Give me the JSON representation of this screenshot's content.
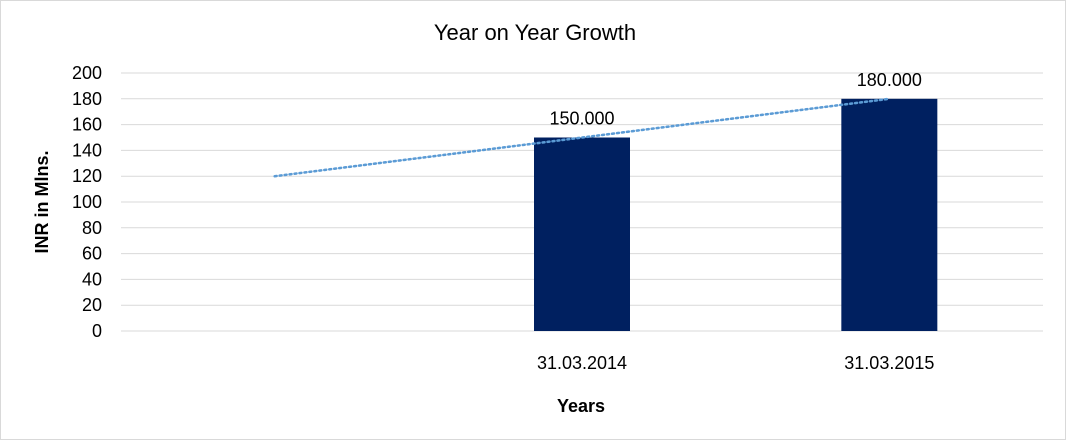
{
  "chart_data": {
    "type": "bar",
    "title": "Year on Year Growth",
    "xlabel": "Years",
    "ylabel": "INR in Mlns.",
    "categories": [
      "",
      "31.03.2014",
      "31.03.2015"
    ],
    "values": [
      null,
      150,
      180
    ],
    "data_labels": [
      "",
      "150.000",
      "180.000"
    ],
    "ylim": [
      0,
      200
    ],
    "yticks": [
      0,
      20,
      40,
      60,
      80,
      100,
      120,
      140,
      160,
      180,
      200
    ],
    "grid": true,
    "legend": "none",
    "trendline": {
      "type": "linear",
      "style": "dotted",
      "values": [
        120,
        150,
        180
      ]
    },
    "colors": {
      "bar": "#002060",
      "trendline": "#5b9bd5",
      "grid": "#d9d9d9"
    }
  }
}
